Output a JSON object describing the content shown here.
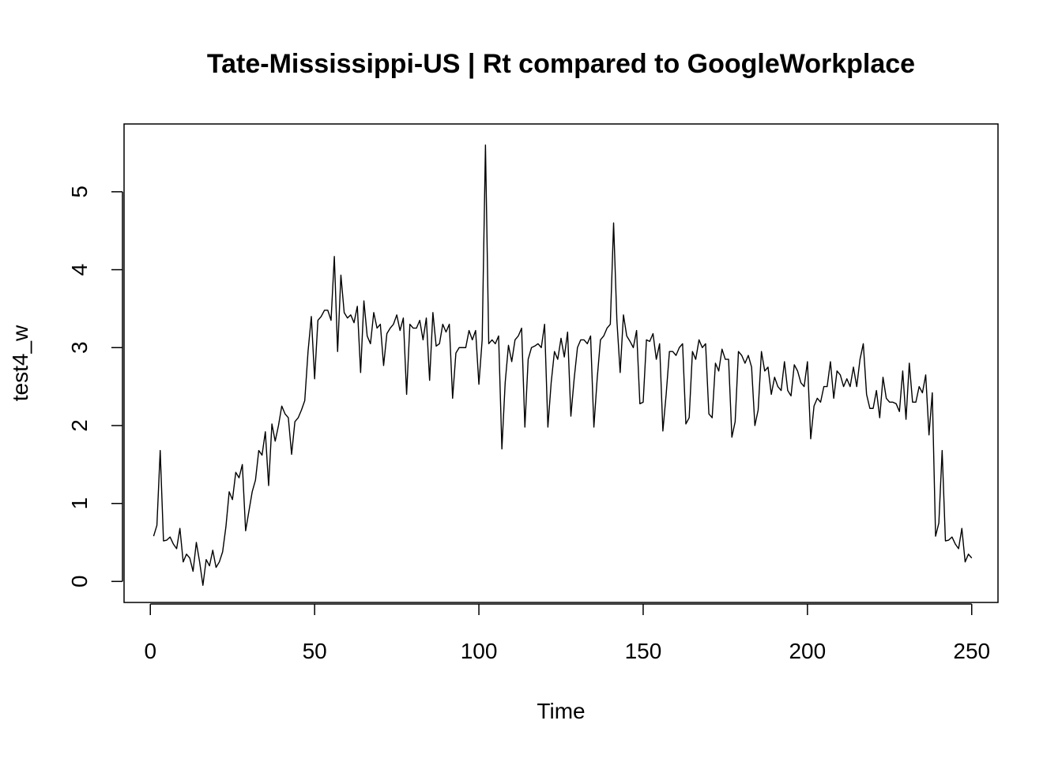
{
  "chart_data": {
    "type": "line",
    "title": "Tate-Mississippi-US | Rt compared to GoogleWorkplace",
    "xlabel": "Time",
    "ylabel": "test4_w",
    "xlim": [
      -8,
      258
    ],
    "ylim": [
      -0.27,
      5.87
    ],
    "x_ticks": [
      0,
      50,
      100,
      150,
      200,
      250
    ],
    "y_ticks": [
      0,
      1,
      2,
      3,
      4,
      5
    ],
    "grid": false,
    "legend": "none",
    "line_color": "#000000",
    "x_start": 1,
    "values": [
      0.58,
      0.72,
      1.68,
      0.52,
      0.53,
      0.57,
      0.48,
      0.42,
      0.68,
      0.25,
      0.35,
      0.3,
      0.13,
      0.5,
      0.25,
      -0.05,
      0.28,
      0.2,
      0.4,
      0.18,
      0.25,
      0.38,
      0.7,
      1.15,
      1.05,
      1.4,
      1.33,
      1.5,
      0.65,
      0.9,
      1.15,
      1.3,
      1.68,
      1.62,
      1.92,
      1.23,
      2.02,
      1.8,
      2.0,
      2.25,
      2.15,
      2.1,
      1.63,
      2.05,
      2.1,
      2.2,
      2.32,
      2.95,
      3.4,
      2.6,
      3.35,
      3.4,
      3.48,
      3.48,
      3.35,
      4.17,
      2.95,
      3.93,
      3.45,
      3.38,
      3.42,
      3.32,
      3.53,
      2.68,
      3.6,
      3.15,
      3.05,
      3.45,
      3.25,
      3.3,
      2.77,
      3.18,
      3.25,
      3.3,
      3.42,
      3.22,
      3.38,
      2.4,
      3.3,
      3.25,
      3.25,
      3.35,
      3.1,
      3.38,
      2.58,
      3.45,
      3.02,
      3.05,
      3.3,
      3.2,
      3.3,
      2.35,
      2.93,
      3.0,
      3.0,
      3.0,
      3.22,
      3.1,
      3.22,
      2.53,
      3.1,
      5.6,
      3.05,
      3.1,
      3.05,
      3.15,
      1.7,
      2.55,
      3.03,
      2.82,
      3.1,
      3.15,
      3.25,
      1.98,
      2.85,
      3.0,
      3.02,
      3.05,
      3.0,
      3.3,
      1.98,
      2.55,
      2.95,
      2.85,
      3.12,
      2.88,
      3.2,
      2.12,
      2.6,
      3.0,
      3.1,
      3.1,
      3.05,
      3.15,
      1.98,
      2.6,
      3.1,
      3.15,
      3.25,
      3.3,
      4.6,
      3.35,
      2.68,
      3.42,
      3.15,
      3.08,
      3.0,
      3.22,
      2.28,
      2.3,
      3.1,
      3.08,
      3.18,
      2.85,
      3.05,
      1.93,
      2.4,
      2.95,
      2.95,
      2.9,
      3.0,
      3.05,
      2.02,
      2.1,
      2.95,
      2.85,
      3.1,
      3.0,
      3.05,
      2.15,
      2.1,
      2.8,
      2.7,
      2.98,
      2.85,
      2.85,
      1.85,
      2.05,
      2.95,
      2.9,
      2.8,
      2.9,
      2.75,
      2.0,
      2.2,
      2.95,
      2.7,
      2.75,
      2.4,
      2.62,
      2.5,
      2.45,
      2.82,
      2.45,
      2.38,
      2.78,
      2.7,
      2.55,
      2.5,
      2.82,
      1.83,
      2.25,
      2.35,
      2.3,
      2.5,
      2.5,
      2.82,
      2.35,
      2.7,
      2.65,
      2.5,
      2.6,
      2.5,
      2.75,
      2.5,
      2.85,
      3.05,
      2.4,
      2.22,
      2.22,
      2.45,
      2.1,
      2.62,
      2.35,
      2.3,
      2.3,
      2.28,
      2.18,
      2.7,
      2.08,
      2.8,
      2.3,
      2.3,
      2.5,
      2.42,
      2.65,
      1.88,
      2.42,
      0.58,
      0.75,
      1.68,
      0.52,
      0.53,
      0.57,
      0.48,
      0.42,
      0.68,
      0.25,
      0.35,
      0.3
    ]
  }
}
